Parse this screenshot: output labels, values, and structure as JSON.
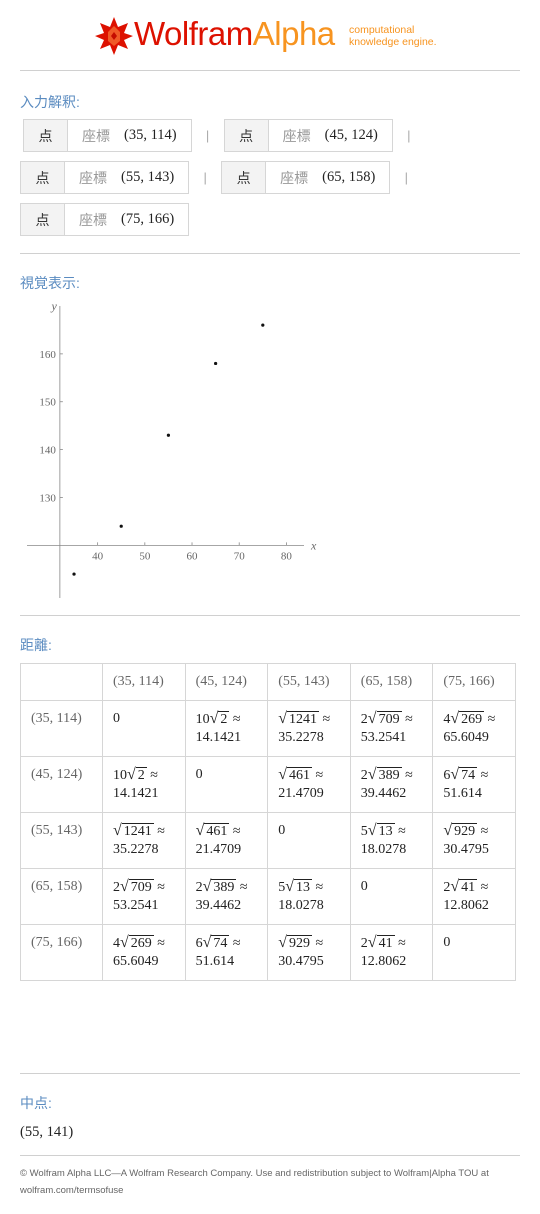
{
  "header": {
    "brand_wolfram": "Wolfram",
    "brand_alpha": "Alpha",
    "tagline_line1": "computational",
    "tagline_line2": "knowledge engine.",
    "brand_color_red": "#dd1100",
    "brand_color_orange": "#f79420"
  },
  "input_interpretation": {
    "label": "入力解釈:",
    "items": [
      {
        "type": "点",
        "property": "座標",
        "value": "(35, 114)"
      },
      {
        "type": "点",
        "property": "座標",
        "value": "(45, 124)"
      },
      {
        "type": "点",
        "property": "座標",
        "value": "(55, 143)"
      },
      {
        "type": "点",
        "property": "座標",
        "value": "(65, 158)"
      },
      {
        "type": "点",
        "property": "座標",
        "value": "(75, 166)"
      }
    ],
    "separator": "|"
  },
  "visual": {
    "label": "視覚表示:"
  },
  "chart_data": {
    "type": "scatter",
    "xlabel": "x",
    "ylabel": "y",
    "x": [
      35,
      45,
      55,
      65,
      75
    ],
    "y": [
      114,
      124,
      143,
      158,
      166
    ],
    "xticks": [
      40,
      50,
      60,
      70,
      80
    ],
    "yticks": [
      130,
      140,
      150,
      160
    ],
    "xlim": [
      28,
      85
    ],
    "ylim": [
      109,
      170
    ],
    "axis_origin": [
      32,
      120
    ],
    "grid": false
  },
  "distances": {
    "label": "距離:",
    "headers": [
      "(35, 114)",
      "(45, 124)",
      "(55, 143)",
      "(65, 158)",
      "(75, 166)"
    ],
    "rows": [
      {
        "label": "(35, 114)",
        "cells": [
          {
            "plain": "0"
          },
          {
            "coef": "10",
            "rad": "2",
            "approx": "14.1421"
          },
          {
            "coef": "",
            "rad": "1241",
            "approx": "35.2278"
          },
          {
            "coef": "2",
            "rad": "709",
            "approx": "53.2541"
          },
          {
            "coef": "4",
            "rad": "269",
            "approx": "65.6049"
          }
        ]
      },
      {
        "label": "(45, 124)",
        "cells": [
          {
            "coef": "10",
            "rad": "2",
            "approx": "14.1421"
          },
          {
            "plain": "0"
          },
          {
            "coef": "",
            "rad": "461",
            "approx": "21.4709"
          },
          {
            "coef": "2",
            "rad": "389",
            "approx": "39.4462"
          },
          {
            "coef": "6",
            "rad": "74",
            "approx": "51.614"
          }
        ]
      },
      {
        "label": "(55, 143)",
        "cells": [
          {
            "coef": "",
            "rad": "1241",
            "approx": "35.2278"
          },
          {
            "coef": "",
            "rad": "461",
            "approx": "21.4709"
          },
          {
            "plain": "0"
          },
          {
            "coef": "5",
            "rad": "13",
            "approx": "18.0278"
          },
          {
            "coef": "",
            "rad": "929",
            "approx": "30.4795"
          }
        ]
      },
      {
        "label": "(65, 158)",
        "cells": [
          {
            "coef": "2",
            "rad": "709",
            "approx": "53.2541"
          },
          {
            "coef": "2",
            "rad": "389",
            "approx": "39.4462"
          },
          {
            "coef": "5",
            "rad": "13",
            "approx": "18.0278"
          },
          {
            "plain": "0"
          },
          {
            "coef": "2",
            "rad": "41",
            "approx": "12.8062"
          }
        ]
      },
      {
        "label": "(75, 166)",
        "cells": [
          {
            "coef": "4",
            "rad": "269",
            "approx": "65.6049"
          },
          {
            "coef": "6",
            "rad": "74",
            "approx": "51.614"
          },
          {
            "coef": "",
            "rad": "929",
            "approx": "30.4795"
          },
          {
            "coef": "2",
            "rad": "41",
            "approx": "12.8062"
          },
          {
            "plain": "0"
          }
        ]
      }
    ]
  },
  "midpoint": {
    "label": "中点:",
    "value": "(55, 141)"
  },
  "footer": {
    "text": "© Wolfram Alpha LLC—A Wolfram Research Company. Use and redistribution subject to Wolfram|Alpha TOU at wolfram.com/termsofuse"
  }
}
